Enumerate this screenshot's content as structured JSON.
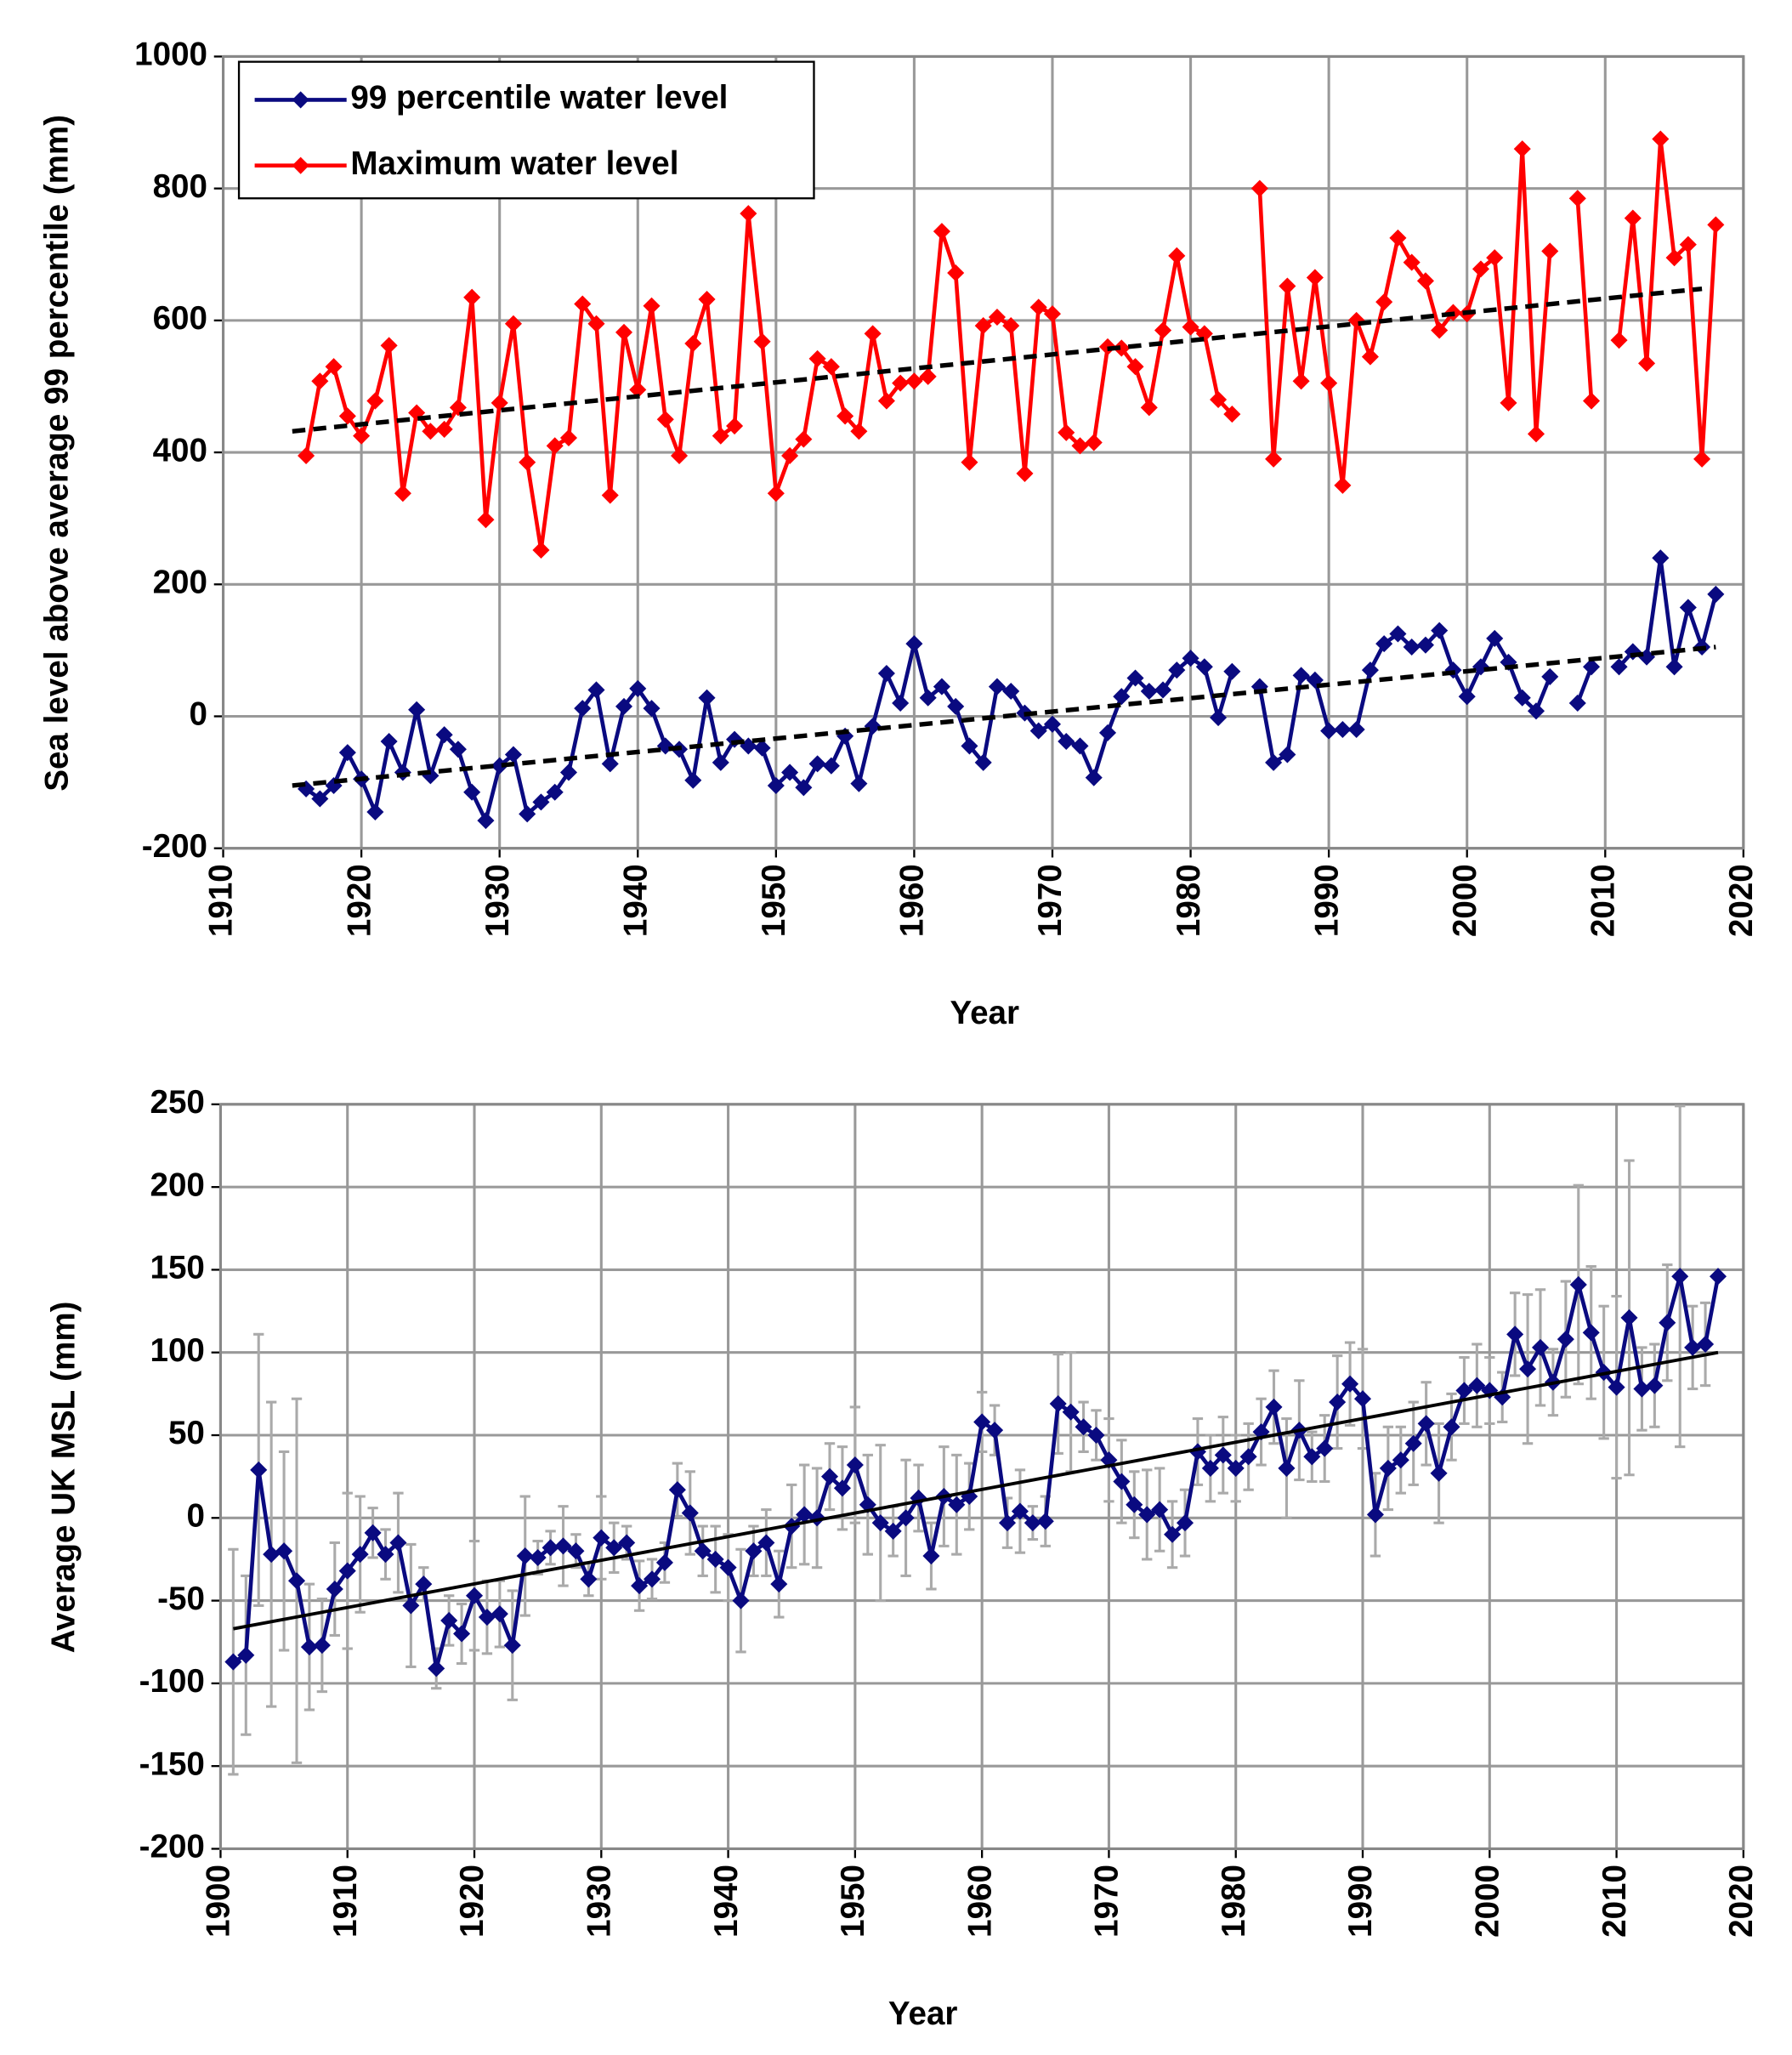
{
  "chart_data": [
    {
      "type": "line",
      "x_label": "Year",
      "y_label": "Sea level above average 99 percentile (mm)",
      "xlim": [
        1910,
        2020
      ],
      "xticks": [
        1910,
        1920,
        1930,
        1940,
        1950,
        1960,
        1970,
        1980,
        1990,
        2000,
        2010,
        2020
      ],
      "ylim": [
        -200,
        1000
      ],
      "yticks": [
        -200,
        0,
        200,
        400,
        600,
        800,
        1000
      ],
      "grid": true,
      "legend": "upper left",
      "x": [
        1916,
        1917,
        1918,
        1919,
        1920,
        1921,
        1922,
        1923,
        1924,
        1925,
        1926,
        1927,
        1928,
        1929,
        1930,
        1931,
        1932,
        1933,
        1934,
        1935,
        1936,
        1937,
        1938,
        1939,
        1940,
        1941,
        1942,
        1943,
        1944,
        1945,
        1946,
        1947,
        1948,
        1949,
        1950,
        1951,
        1952,
        1953,
        1954,
        1955,
        1956,
        1957,
        1958,
        1959,
        1960,
        1961,
        1962,
        1963,
        1964,
        1965,
        1966,
        1967,
        1968,
        1969,
        1970,
        1971,
        1972,
        1973,
        1974,
        1975,
        1976,
        1977,
        1978,
        1979,
        1980,
        1981,
        1982,
        1983,
        1984,
        1985,
        1986,
        1987,
        1988,
        1989,
        1990,
        1991,
        1992,
        1993,
        1994,
        1995,
        1996,
        1997,
        1998,
        1999,
        2000,
        2001,
        2002,
        2003,
        2004,
        2005,
        2006,
        2007,
        2008,
        2009,
        2010,
        2011,
        2012,
        2013,
        2014,
        2015,
        2016,
        2017,
        2018
      ],
      "series": [
        {
          "name": "99 percentile water level",
          "color": "#0a0a80",
          "values": [
            -110,
            -125,
            -105,
            -55,
            -95,
            -145,
            -38,
            -85,
            10,
            -90,
            -28,
            -50,
            -115,
            -158,
            -75,
            -58,
            -148,
            -130,
            -115,
            -85,
            12,
            40,
            -72,
            15,
            42,
            12,
            -45,
            -50,
            -97,
            28,
            -70,
            -35,
            -45,
            -48,
            -105,
            -85,
            -108,
            -72,
            -75,
            -30,
            -102,
            -15,
            65,
            20,
            110,
            28,
            45,
            15,
            -45,
            -70,
            45,
            38,
            5,
            -22,
            -12,
            -38,
            -45,
            -93,
            -25,
            30,
            58,
            38,
            40,
            70,
            88,
            75,
            -2,
            68,
            null,
            45,
            -70,
            -58,
            62,
            55,
            -22,
            -20,
            -20,
            70,
            110,
            125,
            105,
            108,
            130,
            70,
            30,
            75,
            118,
            82,
            28,
            8,
            60,
            null,
            20,
            75,
            null,
            75,
            98,
            90,
            240,
            75,
            165,
            105,
            185
          ]
        },
        {
          "name": "Maximum water level",
          "color": "#ff0000",
          "values": [
            395,
            508,
            530,
            455,
            425,
            478,
            562,
            338,
            460,
            432,
            435,
            468,
            635,
            298,
            475,
            595,
            385,
            252,
            410,
            422,
            625,
            595,
            335,
            582,
            495,
            622,
            450,
            395,
            565,
            632,
            425,
            440,
            762,
            568,
            338,
            395,
            420,
            542,
            530,
            455,
            432,
            580,
            478,
            505,
            508,
            515,
            735,
            672,
            385,
            592,
            605,
            592,
            368,
            620,
            610,
            430,
            410,
            415,
            560,
            558,
            530,
            468,
            585,
            698,
            590,
            580,
            480,
            458,
            null,
            800,
            390,
            652,
            508,
            665,
            505,
            350,
            600,
            545,
            628,
            725,
            688,
            660,
            585,
            612,
            610,
            678,
            695,
            475,
            860,
            428,
            705,
            null,
            785,
            478,
            null,
            570,
            755,
            535,
            875,
            695,
            715,
            390,
            745
          ]
        }
      ],
      "trendlines": [
        {
          "x": [
            1915,
            2018
          ],
          "values": [
            -105,
            105
          ],
          "color": "#000000",
          "dashed": true
        },
        {
          "x": [
            1915,
            2017
          ],
          "values": [
            432,
            648
          ],
          "color": "#000000",
          "dashed": true
        }
      ]
    },
    {
      "type": "line",
      "x_label": "Year",
      "y_label": "Average UK MSL (mm)",
      "xlim": [
        1900,
        2020
      ],
      "xticks": [
        1900,
        1910,
        1920,
        1930,
        1940,
        1950,
        1960,
        1970,
        1980,
        1990,
        2000,
        2010,
        2020
      ],
      "ylim": [
        -200,
        250
      ],
      "yticks": [
        -200,
        -150,
        -100,
        -50,
        0,
        50,
        100,
        150,
        200,
        250
      ],
      "grid": true,
      "x": [
        1901,
        1902,
        1903,
        1904,
        1905,
        1906,
        1907,
        1908,
        1909,
        1910,
        1911,
        1912,
        1913,
        1914,
        1915,
        1916,
        1917,
        1918,
        1919,
        1920,
        1921,
        1922,
        1923,
        1924,
        1925,
        1926,
        1927,
        1928,
        1929,
        1930,
        1931,
        1932,
        1933,
        1934,
        1935,
        1936,
        1937,
        1938,
        1939,
        1940,
        1941,
        1942,
        1943,
        1944,
        1945,
        1946,
        1947,
        1948,
        1949,
        1950,
        1951,
        1952,
        1953,
        1954,
        1955,
        1956,
        1957,
        1958,
        1959,
        1960,
        1961,
        1962,
        1963,
        1964,
        1965,
        1966,
        1967,
        1968,
        1969,
        1970,
        1971,
        1972,
        1973,
        1974,
        1975,
        1976,
        1977,
        1978,
        1979,
        1980,
        1981,
        1982,
        1983,
        1984,
        1985,
        1986,
        1987,
        1988,
        1989,
        1990,
        1991,
        1992,
        1993,
        1994,
        1995,
        1996,
        1997,
        1998,
        1999,
        2000,
        2001,
        2002,
        2003,
        2004,
        2005,
        2006,
        2007,
        2008,
        2009,
        2010,
        2011,
        2012,
        2013,
        2014,
        2015,
        2016,
        2017,
        2018
      ],
      "series": [
        {
          "color": "#0a0a80",
          "error_color": "#aaaaaa",
          "values": [
            -87,
            -83,
            29,
            -22,
            -20,
            -38,
            -78,
            -77,
            -43,
            -32,
            -22,
            -9,
            -22,
            -15,
            -53,
            -40,
            -91,
            -62,
            -70,
            -47,
            -60,
            -58,
            -77,
            -23,
            -24,
            -18,
            -17,
            -20,
            -37,
            -12,
            -18,
            -15,
            -41,
            -37,
            -27,
            17,
            3,
            -20,
            -25,
            -30,
            -50,
            -20,
            -15,
            -40,
            -5,
            2,
            0,
            25,
            18,
            32,
            8,
            -3,
            -8,
            0,
            12,
            -23,
            13,
            8,
            13,
            58,
            53,
            -3,
            4,
            -3,
            -2,
            69,
            64,
            55,
            50,
            35,
            22,
            8,
            2,
            5,
            -10,
            -3,
            40,
            30,
            38,
            30,
            37,
            52,
            67,
            30,
            53,
            37,
            42,
            70,
            81,
            72,
            2,
            30,
            35,
            45,
            57,
            27,
            55,
            77,
            80,
            77,
            73,
            111,
            90,
            103,
            82,
            108,
            141,
            112,
            88,
            79,
            121,
            78,
            80,
            118,
            146,
            103,
            105,
            146
          ],
          "errors": [
            68,
            48,
            82,
            92,
            60,
            110,
            38,
            28,
            28,
            47,
            35,
            15,
            15,
            30,
            37,
            10,
            12,
            15,
            18,
            33,
            22,
            20,
            33,
            36,
            10,
            10,
            24,
            10,
            10,
            25,
            15,
            10,
            15,
            12,
            12,
            16,
            25,
            15,
            20,
            20,
            31,
            15,
            20,
            20,
            25,
            30,
            30,
            20,
            25,
            35,
            30,
            47,
            15,
            35,
            20,
            20,
            30,
            30,
            20,
            18,
            15,
            15,
            25,
            10,
            15,
            30,
            36,
            15,
            15,
            25,
            25,
            20,
            27,
            25,
            20,
            20,
            20,
            20,
            23,
            20,
            20,
            20,
            22,
            30,
            30,
            15,
            20,
            28,
            25,
            30,
            25,
            25,
            20,
            25,
            25,
            30,
            20,
            20,
            25,
            20,
            15,
            25,
            45,
            35,
            20,
            35,
            60,
            40,
            40,
            55,
            95,
            25,
            25,
            35,
            103,
            25,
            25,
            null
          ]
        }
      ],
      "trendlines": [
        {
          "x": [
            1901,
            2018
          ],
          "values": [
            -67,
            100
          ],
          "color": "#000000",
          "dashed": false
        }
      ]
    }
  ]
}
